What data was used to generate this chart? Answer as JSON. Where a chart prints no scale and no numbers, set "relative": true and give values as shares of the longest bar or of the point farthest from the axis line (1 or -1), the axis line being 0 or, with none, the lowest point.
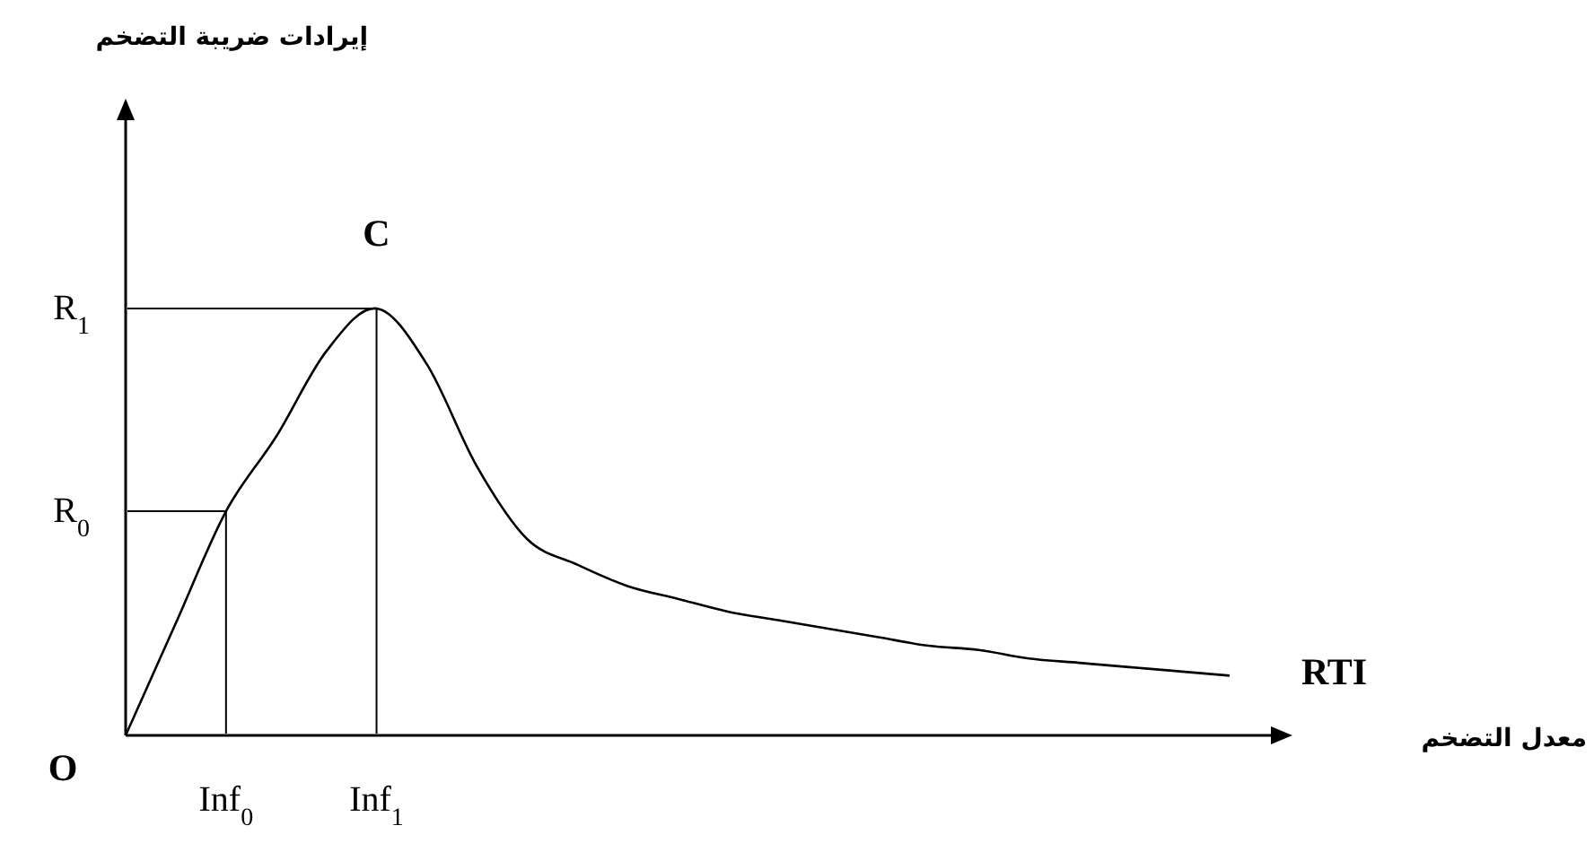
{
  "chart_data": {
    "type": "line",
    "color": "#000000",
    "relative": true,
    "categories": [
      null,
      null,
      "Inf$_{0}$",
      null,
      null,
      "Inf$_{1}$",
      null,
      null,
      null,
      null,
      null,
      null,
      null,
      null,
      null,
      null,
      null,
      null,
      null,
      null,
      null,
      null,
      null
    ],
    "values": [
      0,
      0.263,
      0.525,
      0.7,
      0.9,
      1,
      0.87,
      0.63,
      0.46,
      0.4,
      0.35,
      0.32,
      0.29,
      0.27,
      0.25,
      0.23,
      0.21,
      0.2,
      0.18,
      0.17,
      0.16,
      0.15,
      0.14
    ],
    "annotations": [
      "R$_{1}$",
      "R$_{0}$",
      {
        "text": "C",
        "x": "Inf$_{1}$",
        "y": 1
      },
      "RTI",
      "O",
      "إيرادات ضريبة التضخم",
      "معدل التضخم"
    ]
  }
}
